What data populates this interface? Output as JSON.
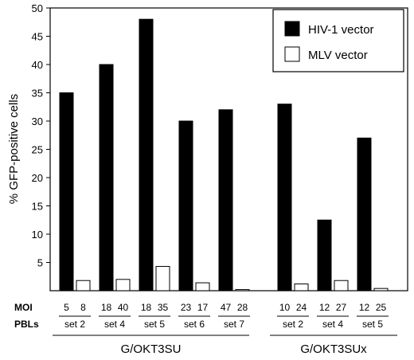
{
  "chart_data": {
    "type": "bar",
    "title": "",
    "xlabel": "",
    "ylabel": "% GFP-positive cells",
    "ylim": [
      0,
      50
    ],
    "yticks": [
      5,
      10,
      15,
      20,
      25,
      30,
      35,
      40,
      45,
      50
    ],
    "grid": false,
    "legend_position": "top-right",
    "row_labels": {
      "moi": "MOI",
      "pbls": "PBLs"
    },
    "series": [
      {
        "name": "HIV-1 vector",
        "color": "#000000"
      },
      {
        "name": "MLV vector",
        "color": "#ffffff"
      }
    ],
    "groups": [
      {
        "name": "G/OKT3SU",
        "categories": [
          {
            "pbl": "set 2",
            "moi": [
              "5",
              "8"
            ],
            "values": [
              35,
              1.8
            ]
          },
          {
            "pbl": "set 4",
            "moi": [
              "18",
              "40"
            ],
            "values": [
              40,
              2.0
            ]
          },
          {
            "pbl": "set 5",
            "moi": [
              "18",
              "35"
            ],
            "values": [
              48,
              4.3
            ]
          },
          {
            "pbl": "set 6",
            "moi": [
              "23",
              "17"
            ],
            "values": [
              30,
              1.4
            ]
          },
          {
            "pbl": "set 7",
            "moi": [
              "47",
              "28"
            ],
            "values": [
              32,
              0.2
            ]
          }
        ]
      },
      {
        "name": "G/OKT3SUx",
        "categories": [
          {
            "pbl": "set 2",
            "moi": [
              "10",
              "24"
            ],
            "values": [
              33,
              1.2
            ]
          },
          {
            "pbl": "set 4",
            "moi": [
              "12",
              "27"
            ],
            "values": [
              12.5,
              1.8
            ]
          },
          {
            "pbl": "set 5",
            "moi": [
              "12",
              "25"
            ],
            "values": [
              27,
              0.4
            ]
          }
        ]
      }
    ]
  }
}
